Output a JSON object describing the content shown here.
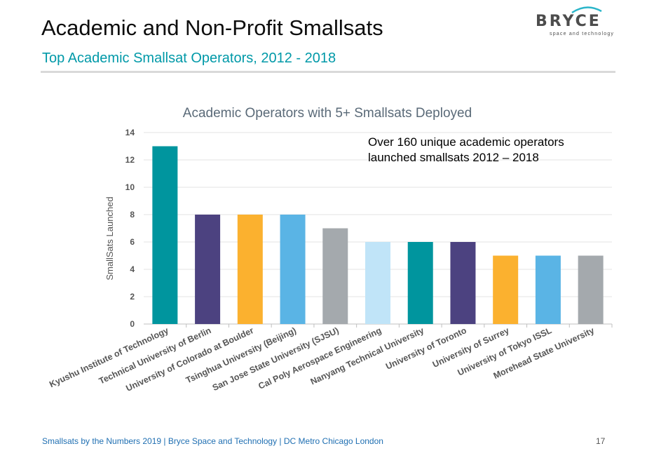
{
  "slide": {
    "title": "Academic and Non-Profit Smallsats",
    "subtitle": "Top Academic Smallsat Operators, 2012 - 2018"
  },
  "logo": {
    "word": "BRYCE",
    "tagline": "space and technology",
    "color": "#4d4d4d",
    "arc_color": "#2ab5c9"
  },
  "annotation": {
    "line1": "Over 160 unique academic operators",
    "line2": "launched smallsats 2012 – 2018"
  },
  "footer": {
    "text": "Smallsats by the Numbers 2019 | Bryce Space and Technology | DC Metro  Chicago  London",
    "page": "17"
  },
  "chart_data": {
    "type": "bar",
    "title": "Academic Operators with 5+ Smallsats Deployed",
    "ylabel": "SmallSats Launched",
    "xlabel": "",
    "ylim": [
      0,
      14
    ],
    "yticks": [
      0,
      2,
      4,
      6,
      8,
      10,
      12,
      14
    ],
    "grid": true,
    "categories": [
      "Kyushu Institute of Technology",
      "Technical University of Berlin",
      "University of Colorado at Boulder",
      "Tsinghua University (Beijing)",
      "San Jose State University (SJSU)",
      "Cal Poly Aerospace Engineering",
      "Nanyang Technical University",
      "University of Toronto",
      "University of Surrey",
      "University of Tokyo ISSL",
      "Morehead State University"
    ],
    "values": [
      13,
      8,
      8,
      8,
      7,
      6,
      6,
      6,
      5,
      5,
      5
    ],
    "colors": [
      "#00959e",
      "#4c4280",
      "#fbb12f",
      "#5ab4e5",
      "#a4a9ad",
      "#c0e4f8",
      "#00959e",
      "#4c4280",
      "#fbb12f",
      "#5ab4e5",
      "#a4a9ad"
    ]
  }
}
